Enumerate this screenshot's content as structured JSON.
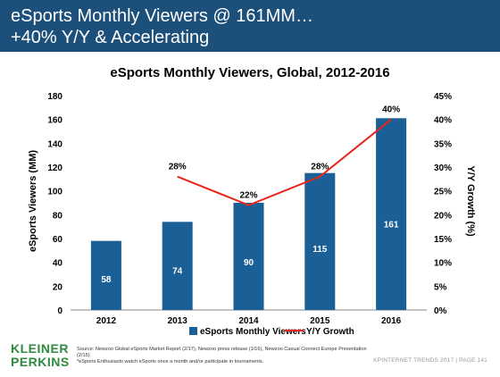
{
  "header": {
    "title_line1": "eSports Monthly Viewers @ 161MM…",
    "title_line2": "+40% Y/Y & Accelerating"
  },
  "colors": {
    "header_bg": "#1c4f7a",
    "bar": "#1a5f96",
    "line": "#e8261c",
    "logo": "#2e8b3e"
  },
  "chart_data": {
    "type": "bar",
    "title": "eSports Monthly Viewers, Global, 2012-2016",
    "categories": [
      "2012",
      "2013",
      "2014",
      "2015",
      "2016"
    ],
    "ylabel": "eSports Viewers (MM)",
    "y2label": "Y/Y Growth (%)",
    "ylim": [
      0,
      180
    ],
    "yticks": [
      0,
      20,
      40,
      60,
      80,
      100,
      120,
      140,
      160,
      180
    ],
    "y2lim": [
      0,
      45
    ],
    "y2ticks": [
      "0%",
      "5%",
      "10%",
      "15%",
      "20%",
      "25%",
      "30%",
      "35%",
      "40%",
      "45%"
    ],
    "grid": false,
    "legend": "bottom",
    "series": [
      {
        "name": "eSports Monthly Viewers",
        "kind": "bar",
        "values": [
          58,
          74,
          90,
          115,
          161
        ],
        "labels": [
          "58",
          "74",
          "90",
          "115",
          "161"
        ]
      },
      {
        "name": "Y/Y Growth",
        "kind": "line",
        "axis": "right",
        "values": [
          null,
          28,
          22,
          28,
          40
        ],
        "labels": [
          "",
          "28%",
          "22%",
          "28%",
          "40%"
        ]
      }
    ]
  },
  "footer": {
    "logo_line1": "KLEINER",
    "logo_line2": "PERKINS",
    "source_line1": "Source: Newzoo Global eSports Market Report (2/17), Newzoo press release (1/16), Newzoo Casual Connect Europe Presentation (2/15)",
    "source_line2": "*eSports Enthusiasts watch eSports once a month and/or participate in tournaments.",
    "meta": "KPINTERNET TRENDS 2017  |  PAGE 141"
  }
}
